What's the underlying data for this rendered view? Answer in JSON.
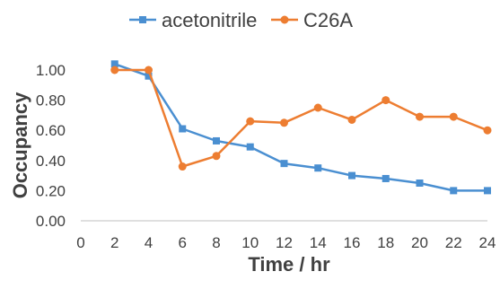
{
  "chart_data": {
    "type": "line",
    "xlabel": "Time  / hr",
    "ylabel": "Occupancy",
    "xlim": [
      0,
      24
    ],
    "ylim": [
      0,
      1.0
    ],
    "x_ticks": [
      "0",
      "2",
      "4",
      "6",
      "8",
      "10",
      "12",
      "14",
      "16",
      "18",
      "20",
      "22",
      "24"
    ],
    "y_ticks": [
      "0.00",
      "0.20",
      "0.40",
      "0.60",
      "0.80",
      "1.00"
    ],
    "grid": false,
    "legend_position": "top",
    "x": [
      2,
      4,
      6,
      8,
      10,
      12,
      14,
      16,
      18,
      20,
      22,
      24
    ],
    "series": [
      {
        "name": "acetonitrile",
        "color": "#4a8fd1",
        "marker": "square",
        "values": [
          1.04,
          0.96,
          0.61,
          0.53,
          0.49,
          0.38,
          0.35,
          0.3,
          0.28,
          0.25,
          0.2,
          0.2
        ]
      },
      {
        "name": "C26A",
        "color": "#ed7d31",
        "marker": "circle",
        "values": [
          1.0,
          1.0,
          0.36,
          0.43,
          0.66,
          0.65,
          0.75,
          0.67,
          0.8,
          0.69,
          0.69,
          0.6
        ]
      }
    ]
  }
}
